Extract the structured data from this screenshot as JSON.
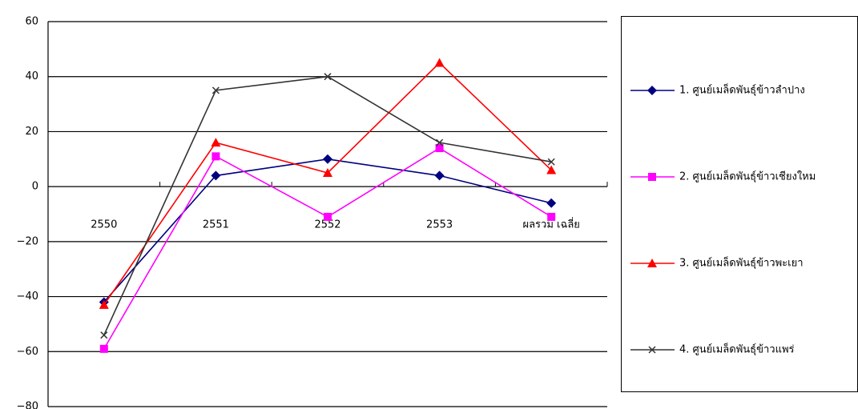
{
  "chart_data": {
    "type": "line",
    "categories": [
      "2550",
      "2551",
      "2552",
      "2553",
      "ผลรวม เฉลี่ย"
    ],
    "series": [
      {
        "name": "1. ศูนย์เมล็ดพันธุ์ข้าวลำปาง",
        "color": "#000080",
        "marker": "diamond",
        "values": [
          -42,
          4,
          10,
          4,
          -6
        ]
      },
      {
        "name": "2. ศูนย์เมล็ดพันธุ์ข้าวเชียงใหม",
        "color": "#ff00ff",
        "marker": "square",
        "values": [
          -59,
          11,
          -11,
          14,
          -11
        ]
      },
      {
        "name": "3. ศูนย์เมล็ดพันธุ์ข้าวพะเยา",
        "color": "#ff0000",
        "marker": "triangle",
        "values": [
          -43,
          16,
          5,
          45,
          6
        ]
      },
      {
        "name": "4. ศูนย์เมล็ดพันธุ์ข้าวแพร่",
        "color": "#333333",
        "marker": "x",
        "values": [
          -54,
          35,
          40,
          16,
          9
        ]
      }
    ],
    "ylim": [
      -80,
      60
    ],
    "yticks": [
      {
        "value": -80,
        "label": "−80"
      },
      {
        "value": -60,
        "label": "−60"
      },
      {
        "value": -40,
        "label": "−40"
      },
      {
        "value": -20,
        "label": "−20"
      },
      0,
      20,
      40,
      60
    ],
    "grid": true,
    "legend": "right"
  }
}
